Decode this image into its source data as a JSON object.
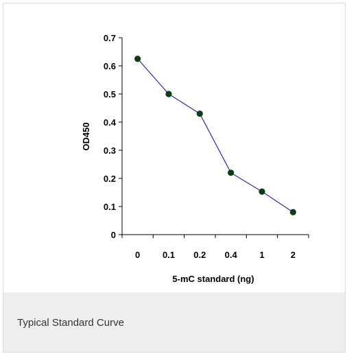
{
  "chart_data": {
    "type": "line",
    "categories": [
      "0",
      "0.1",
      "0.2",
      "0.4",
      "1",
      "2"
    ],
    "series": [
      {
        "values": [
          0.625,
          0.5,
          0.43,
          0.22,
          0.153,
          0.08
        ]
      }
    ],
    "ylabel": "OD450",
    "xlabel": "5-mC standard (ng)",
    "ylim": [
      0,
      0.7
    ],
    "yticks": [
      "0",
      "0.1",
      "0.2",
      "0.3",
      "0.4",
      "0.5",
      "0.6",
      "0.7"
    ],
    "grid": false,
    "line_color": "#2b2bb8",
    "marker_color": "#0b3d16"
  },
  "caption": {
    "text": "Typical Standard Curve"
  }
}
